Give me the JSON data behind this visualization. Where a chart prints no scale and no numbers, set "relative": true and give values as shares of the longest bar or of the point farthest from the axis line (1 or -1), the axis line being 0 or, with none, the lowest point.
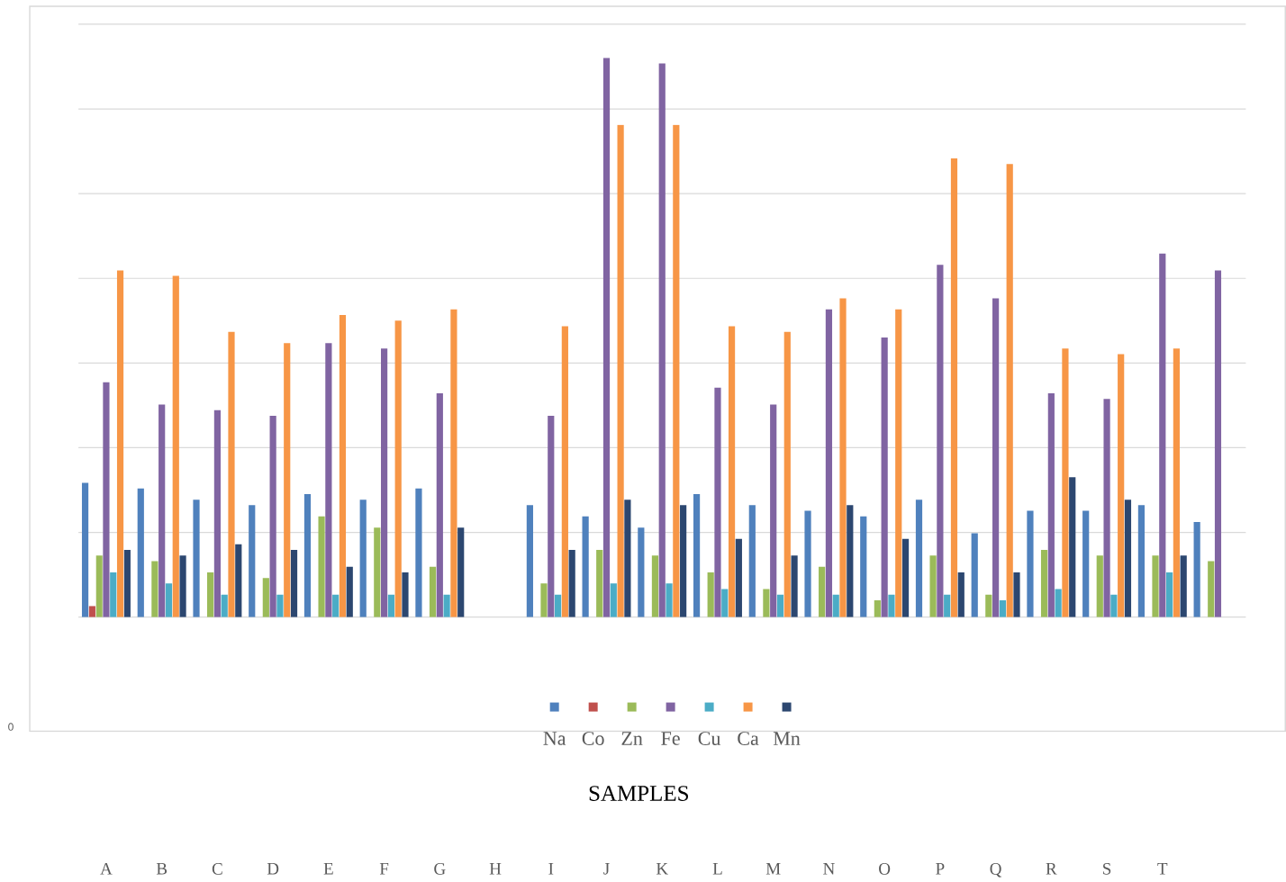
{
  "chart_data": {
    "type": "bar",
    "relative": true,
    "xlabel": "SAMPLES",
    "annotations": [
      "0"
    ],
    "grid": "y",
    "legend": "bottom",
    "tick_labels": "x",
    "categories": [
      "A",
      "B",
      "C",
      "D",
      "E",
      "F",
      "G",
      "H",
      "I",
      "J",
      "K",
      "L",
      "M",
      "N",
      "O",
      "P",
      "Q",
      "R",
      "S",
      "T",
      null
    ],
    "series": [
      {
        "name": "Na",
        "color": "#4f81bd",
        "values": [
          0.24,
          0.23,
          0.21,
          0.2,
          0.22,
          0.21,
          0.23,
          null,
          0.2,
          0.18,
          0.16,
          0.22,
          0.2,
          0.19,
          0.18,
          0.21,
          0.15,
          0.19,
          0.19,
          0.2,
          0.17
        ]
      },
      {
        "name": "Co",
        "color": "#c0504d",
        "values": [
          0.02,
          null,
          null,
          null,
          null,
          null,
          null,
          null,
          null,
          null,
          null,
          null,
          null,
          null,
          null,
          null,
          null,
          null,
          null,
          null,
          null
        ]
      },
      {
        "name": "Zn",
        "color": "#9bbb59",
        "values": [
          0.11,
          0.1,
          0.08,
          0.07,
          0.18,
          0.16,
          0.09,
          null,
          0.06,
          0.12,
          0.11,
          0.08,
          0.05,
          0.09,
          0.03,
          0.11,
          0.04,
          0.12,
          0.11,
          0.11,
          0.1
        ]
      },
      {
        "name": "Fe",
        "color": "#8064a2",
        "values": [
          0.42,
          0.38,
          0.37,
          0.36,
          0.49,
          0.48,
          0.4,
          null,
          0.36,
          1,
          0.99,
          0.41,
          0.38,
          0.55,
          0.5,
          0.63,
          0.57,
          0.4,
          0.39,
          0.65,
          0.62
        ]
      },
      {
        "name": "Cu",
        "color": "#4bacc6",
        "values": [
          0.08,
          0.06,
          0.04,
          0.04,
          0.04,
          0.04,
          0.04,
          null,
          0.04,
          0.06,
          0.06,
          0.05,
          0.04,
          0.04,
          0.04,
          0.04,
          0.03,
          0.05,
          0.04,
          0.08,
          null
        ]
      },
      {
        "name": "Ca",
        "color": "#f79646",
        "values": [
          0.62,
          0.61,
          0.51,
          0.49,
          0.54,
          0.53,
          0.55,
          null,
          0.52,
          0.88,
          0.88,
          0.52,
          0.51,
          0.57,
          0.55,
          0.82,
          0.81,
          0.48,
          0.47,
          0.48,
          null
        ]
      },
      {
        "name": "Mn",
        "color": "#2c4770",
        "values": [
          0.12,
          0.11,
          0.13,
          0.12,
          0.09,
          0.08,
          0.16,
          null,
          0.12,
          0.21,
          0.2,
          0.14,
          0.11,
          0.2,
          0.14,
          0.08,
          0.08,
          0.25,
          0.21,
          0.11,
          null
        ]
      }
    ]
  }
}
